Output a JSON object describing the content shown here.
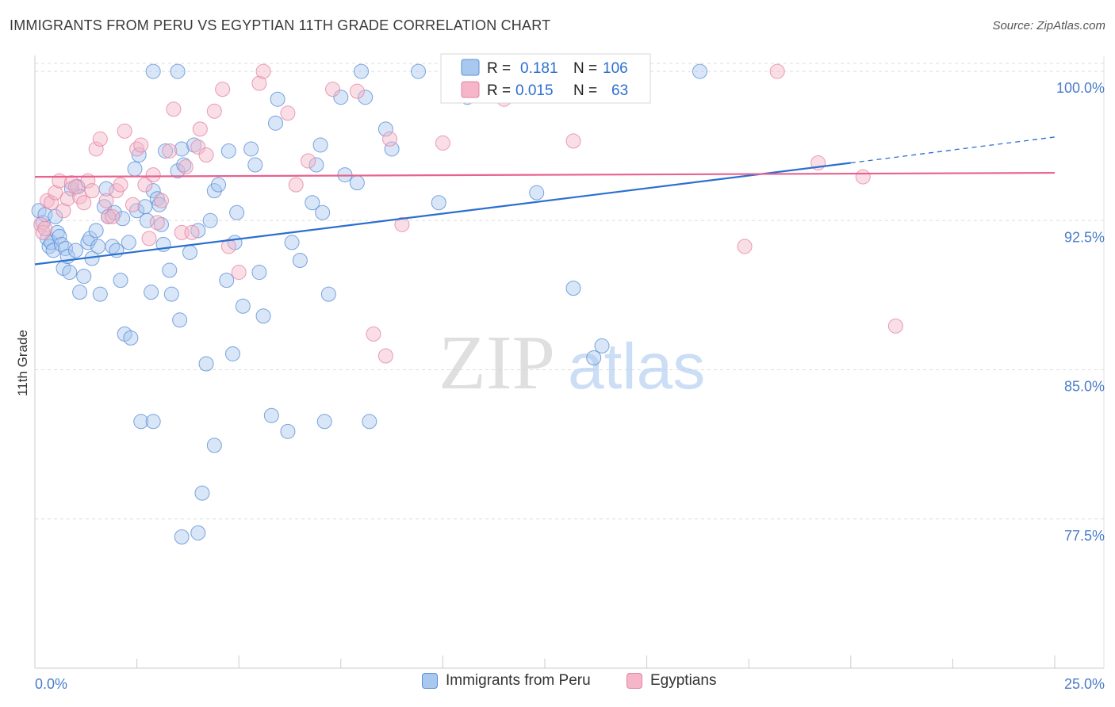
{
  "title": "IMMIGRANTS FROM PERU VS EGYPTIAN 11TH GRADE CORRELATION CHART",
  "source": "Source: ZipAtlas.com",
  "watermark": {
    "zip": "ZIP",
    "atlas": "atlas"
  },
  "colors": {
    "blue_fill": "#a9c8ef",
    "blue_stroke": "#5b8fd6",
    "blue_line": "#2b6fcf",
    "pink_fill": "#f4b6c8",
    "pink_stroke": "#e585a5",
    "pink_line": "#e8628e",
    "axis_text": "#4a7cc9",
    "grid": "#dddddd"
  },
  "legend_box": {
    "rows": [
      {
        "r_label": "R =",
        "r_value": "0.181",
        "n_label": "N =",
        "n_value": "106"
      },
      {
        "r_label": "R =",
        "r_value": "0.015",
        "n_label": "N =",
        "n_value": "63"
      }
    ]
  },
  "bottom_legend": [
    "Immigrants from Peru",
    "Egyptians"
  ],
  "chart_data": {
    "type": "scatter",
    "title": "IMMIGRANTS FROM PERU VS EGYPTIAN 11TH GRADE CORRELATION CHART",
    "xlabel": "",
    "ylabel": "11th Grade",
    "xlim": [
      0,
      25
    ],
    "ylim": [
      70.0,
      100.8
    ],
    "x_tick_labels": [
      "0.0%",
      "25.0%"
    ],
    "y_ticks": [
      77.5,
      85.0,
      92.5,
      100.0
    ],
    "y_tick_labels": [
      "77.5%",
      "85.0%",
      "92.5%",
      "100.0%"
    ],
    "grid": true,
    "series": [
      {
        "name": "Immigrants from Peru",
        "R": 0.181,
        "N": 106,
        "trend": {
          "x0": 0.0,
          "y0": 90.3,
          "x1": 20.0,
          "y1": 95.4,
          "dash_x1": 25.0,
          "dash_y1": 96.7
        },
        "points": [
          [
            0.1,
            93.0
          ],
          [
            0.2,
            92.4
          ],
          [
            0.25,
            92.8
          ],
          [
            0.3,
            91.6
          ],
          [
            0.35,
            91.2
          ],
          [
            0.4,
            91.4
          ],
          [
            0.45,
            91.0
          ],
          [
            0.5,
            92.7
          ],
          [
            0.55,
            91.9
          ],
          [
            0.6,
            91.7
          ],
          [
            0.65,
            91.3
          ],
          [
            0.7,
            90.1
          ],
          [
            0.75,
            91.1
          ],
          [
            0.8,
            90.7
          ],
          [
            0.85,
            89.9
          ],
          [
            0.9,
            94.1
          ],
          [
            1.0,
            91.0
          ],
          [
            1.05,
            94.2
          ],
          [
            1.1,
            88.9
          ],
          [
            1.2,
            89.7
          ],
          [
            1.3,
            91.4
          ],
          [
            1.35,
            91.6
          ],
          [
            1.4,
            90.6
          ],
          [
            1.5,
            92.0
          ],
          [
            1.55,
            91.2
          ],
          [
            1.6,
            88.8
          ],
          [
            1.7,
            93.2
          ],
          [
            1.75,
            94.1
          ],
          [
            1.8,
            92.7
          ],
          [
            1.9,
            91.2
          ],
          [
            1.95,
            92.9
          ],
          [
            2.0,
            91.0
          ],
          [
            2.1,
            89.5
          ],
          [
            2.15,
            92.6
          ],
          [
            2.2,
            86.8
          ],
          [
            2.3,
            91.4
          ],
          [
            2.35,
            86.6
          ],
          [
            2.45,
            95.1
          ],
          [
            2.5,
            93.0
          ],
          [
            2.55,
            95.8
          ],
          [
            2.6,
            82.4
          ],
          [
            2.7,
            93.2
          ],
          [
            2.75,
            92.5
          ],
          [
            2.85,
            88.9
          ],
          [
            2.9,
            94.0
          ],
          [
            3.0,
            93.6
          ],
          [
            3.05,
            93.3
          ],
          [
            3.1,
            92.3
          ],
          [
            3.15,
            91.3
          ],
          [
            3.2,
            96.0
          ],
          [
            3.3,
            90.0
          ],
          [
            3.35,
            88.8
          ],
          [
            3.5,
            95.0
          ],
          [
            3.55,
            87.5
          ],
          [
            3.65,
            95.3
          ],
          [
            3.6,
            96.1
          ],
          [
            3.8,
            90.9
          ],
          [
            3.9,
            96.3
          ],
          [
            4.0,
            92.0
          ],
          [
            4.2,
            85.3
          ],
          [
            4.3,
            92.5
          ],
          [
            4.4,
            94.0
          ],
          [
            4.5,
            94.3
          ],
          [
            4.7,
            89.5
          ],
          [
            4.75,
            96.0
          ],
          [
            4.85,
            85.8
          ],
          [
            4.9,
            91.4
          ],
          [
            4.95,
            92.9
          ],
          [
            5.1,
            88.2
          ],
          [
            5.3,
            96.1
          ],
          [
            5.4,
            95.3
          ],
          [
            5.5,
            89.9
          ],
          [
            5.6,
            87.7
          ],
          [
            5.8,
            82.7
          ],
          [
            5.9,
            97.4
          ],
          [
            5.95,
            98.6
          ],
          [
            6.2,
            81.9
          ],
          [
            6.3,
            91.4
          ],
          [
            6.5,
            90.5
          ],
          [
            6.8,
            93.4
          ],
          [
            6.9,
            95.3
          ],
          [
            7.0,
            96.3
          ],
          [
            7.05,
            92.9
          ],
          [
            7.1,
            82.4
          ],
          [
            7.2,
            88.8
          ],
          [
            7.5,
            98.7
          ],
          [
            7.6,
            94.8
          ],
          [
            7.9,
            94.4
          ],
          [
            8.0,
            100.0
          ],
          [
            8.1,
            98.7
          ],
          [
            8.2,
            82.4
          ],
          [
            8.6,
            97.1
          ],
          [
            8.75,
            96.1
          ],
          [
            9.4,
            100.0
          ],
          [
            9.9,
            93.4
          ],
          [
            10.6,
            98.7
          ],
          [
            12.3,
            93.9
          ],
          [
            13.2,
            89.1
          ],
          [
            13.7,
            85.6
          ],
          [
            13.9,
            86.2
          ],
          [
            16.3,
            100.0
          ],
          [
            3.5,
            100.0
          ],
          [
            2.9,
            100.0
          ],
          [
            4.1,
            78.8
          ],
          [
            3.6,
            76.6
          ],
          [
            4.0,
            76.8
          ],
          [
            4.4,
            81.2
          ],
          [
            2.9,
            82.4
          ]
        ]
      },
      {
        "name": "Egyptians",
        "R": 0.015,
        "N": 63,
        "trend": {
          "x0": 0.0,
          "y0": 94.7,
          "x1": 25.0,
          "y1": 94.9
        },
        "points": [
          [
            0.15,
            92.3
          ],
          [
            0.2,
            91.9
          ],
          [
            0.25,
            92.1
          ],
          [
            0.3,
            93.5
          ],
          [
            0.4,
            93.4
          ],
          [
            0.5,
            93.9
          ],
          [
            0.6,
            94.5
          ],
          [
            0.7,
            93.0
          ],
          [
            0.8,
            93.6
          ],
          [
            0.9,
            94.4
          ],
          [
            1.0,
            94.2
          ],
          [
            1.1,
            93.7
          ],
          [
            1.2,
            93.4
          ],
          [
            1.3,
            94.5
          ],
          [
            1.4,
            94.0
          ],
          [
            1.5,
            96.1
          ],
          [
            1.6,
            96.6
          ],
          [
            1.75,
            93.5
          ],
          [
            1.8,
            92.7
          ],
          [
            1.9,
            92.7
          ],
          [
            2.0,
            94.0
          ],
          [
            2.1,
            94.3
          ],
          [
            2.2,
            97.0
          ],
          [
            2.4,
            93.3
          ],
          [
            2.5,
            96.1
          ],
          [
            2.6,
            96.3
          ],
          [
            2.7,
            94.3
          ],
          [
            2.8,
            91.6
          ],
          [
            2.9,
            94.8
          ],
          [
            3.0,
            92.4
          ],
          [
            3.1,
            93.5
          ],
          [
            3.3,
            96.0
          ],
          [
            3.4,
            98.1
          ],
          [
            3.6,
            91.9
          ],
          [
            3.7,
            95.2
          ],
          [
            3.85,
            91.9
          ],
          [
            4.0,
            96.2
          ],
          [
            4.05,
            97.1
          ],
          [
            4.2,
            95.8
          ],
          [
            4.4,
            98.0
          ],
          [
            4.6,
            99.1
          ],
          [
            4.75,
            91.2
          ],
          [
            5.0,
            89.9
          ],
          [
            5.5,
            99.4
          ],
          [
            6.2,
            97.9
          ],
          [
            6.4,
            94.3
          ],
          [
            6.7,
            95.5
          ],
          [
            7.3,
            99.1
          ],
          [
            7.9,
            99.0
          ],
          [
            8.3,
            86.8
          ],
          [
            8.6,
            85.7
          ],
          [
            8.7,
            96.6
          ],
          [
            9.0,
            92.3
          ],
          [
            10.0,
            96.4
          ],
          [
            11.5,
            98.6
          ],
          [
            12.0,
            98.8
          ],
          [
            13.2,
            96.5
          ],
          [
            17.4,
            91.2
          ],
          [
            18.2,
            100.0
          ],
          [
            19.2,
            95.4
          ],
          [
            20.3,
            94.7
          ],
          [
            21.1,
            87.2
          ],
          [
            5.6,
            100.0
          ]
        ]
      }
    ]
  }
}
